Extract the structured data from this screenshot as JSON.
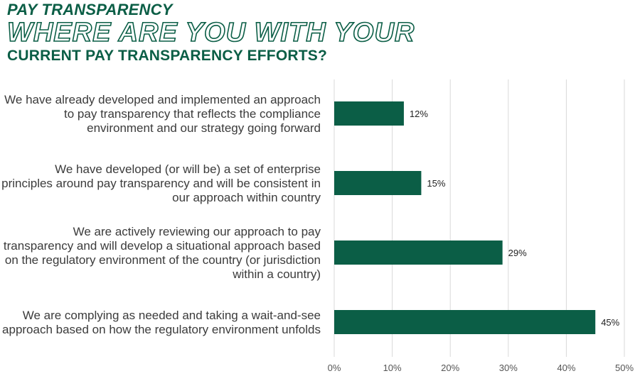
{
  "header": {
    "kicker": "PAY TRANSPARENCY",
    "headline": "WHERE ARE YOU WITH YOUR",
    "subheadline": "CURRENT PAY TRANSPARENCY EFFORTS?"
  },
  "colors": {
    "bar": "#0b5e46",
    "heading": "#0b5e46",
    "grid": "#d9d9d9"
  },
  "chart_data": {
    "type": "bar",
    "orientation": "horizontal",
    "categories": [
      [
        "We have already developed and implemented an approach",
        "to pay transparency that reflects the compliance",
        "environment and our strategy going forward"
      ],
      [
        "We have developed (or will be) a set of enterprise",
        "principles around pay transparency and will be consistent in",
        "our approach within country"
      ],
      [
        "We are actively reviewing our approach to pay",
        "transparency and will develop a situational approach based",
        "on the regulatory environment of the country (or jurisdiction",
        "within a country)"
      ],
      [
        "We are complying as needed and taking a wait-and-see",
        "approach based on how the regulatory environment unfolds"
      ]
    ],
    "values": [
      12,
      15,
      29,
      45
    ],
    "value_labels": [
      "12%",
      "15%",
      "29%",
      "45%"
    ],
    "x_ticks": [
      "0%",
      "10%",
      "20%",
      "30%",
      "40%",
      "50%"
    ],
    "xlim": [
      0,
      50
    ],
    "grid": "vertical"
  }
}
